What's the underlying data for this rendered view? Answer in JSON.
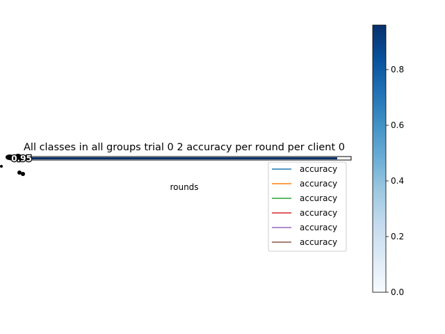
{
  "chart_data": {
    "type": "heatmap",
    "title": "All classes in all groups trial 0 2 accuracy per round per client 0",
    "xlabel": "rounds",
    "ylabel": "",
    "cell_annotation": "0.95",
    "colorbar": {
      "colormap": "Blues",
      "range": [
        0,
        0.96
      ],
      "ticks": [
        0.0,
        0.2,
        0.4,
        0.6,
        0.8
      ],
      "tick_labels": [
        "0.0",
        "0.2",
        "0.4",
        "0.6",
        "0.8"
      ]
    },
    "legend": {
      "placement": "center-right",
      "entries": [
        {
          "label": "accuracy",
          "color": "#1f77b4"
        },
        {
          "label": "accuracy",
          "color": "#ff7f0e"
        },
        {
          "label": "accuracy",
          "color": "#2ca02c"
        },
        {
          "label": "accuracy",
          "color": "#d62728"
        },
        {
          "label": "accuracy",
          "color": "#9467bd"
        },
        {
          "label": "accuracy",
          "color": "#8c564b"
        }
      ]
    }
  }
}
